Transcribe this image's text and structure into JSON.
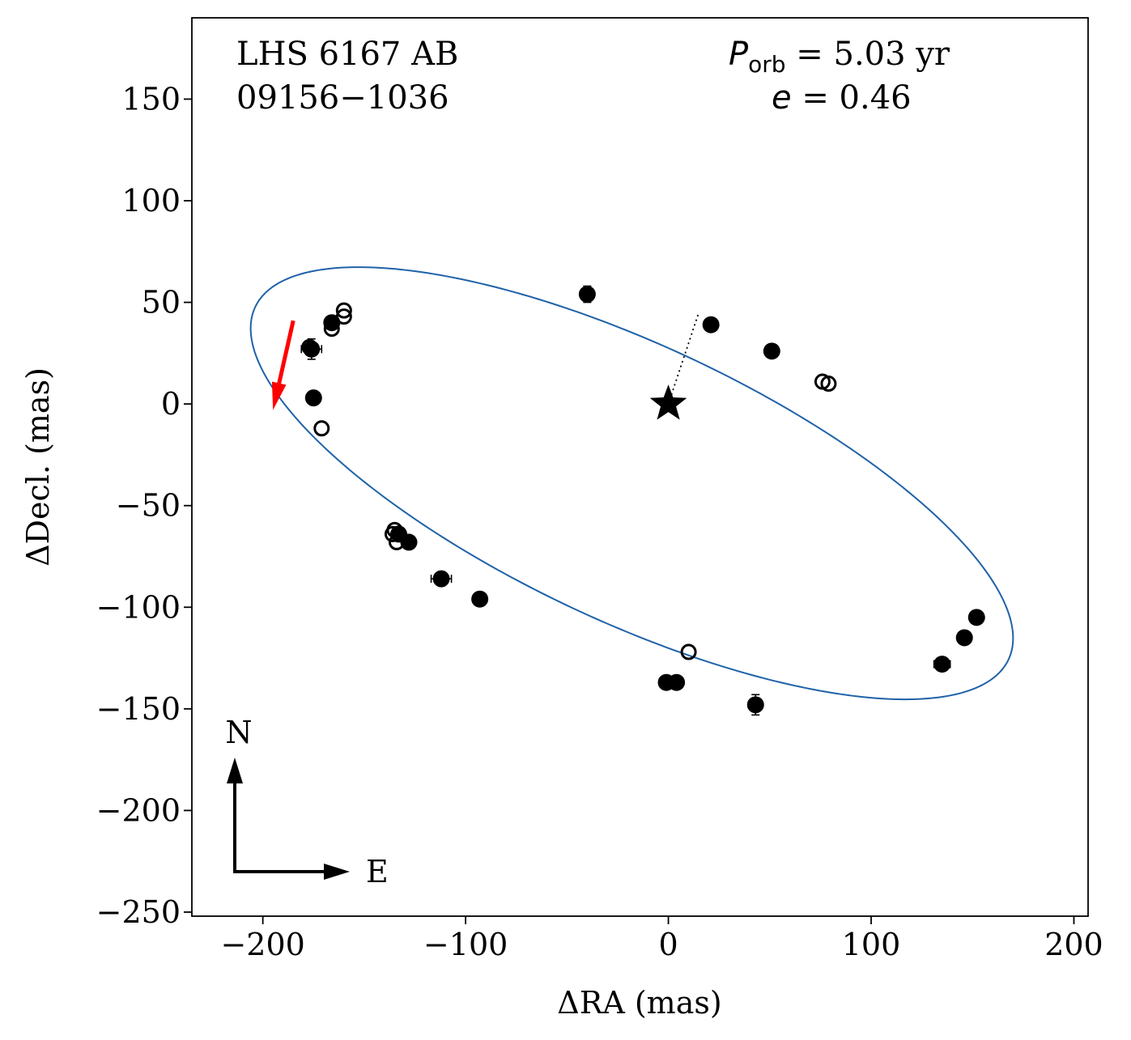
{
  "chart_data": {
    "type": "scatter",
    "title": "",
    "xlabel": "ΔRA  (mas)",
    "ylabel": "ΔDecl.  (mas)",
    "xlim": [
      -235,
      207
    ],
    "ylim": [
      -252,
      190
    ],
    "x_ticks": [
      -200,
      -100,
      0,
      100,
      200
    ],
    "y_ticks": [
      -250,
      -200,
      -150,
      -100,
      -50,
      0,
      50,
      100,
      150
    ],
    "x_tick_labels": [
      "−200",
      "−100",
      "0",
      "100",
      "200"
    ],
    "y_tick_labels": [
      "−250",
      "−200",
      "−150",
      "−100",
      "−50",
      "0",
      "50",
      "100",
      "150"
    ],
    "grid": false,
    "colors": {
      "orbit": "#1f62a8",
      "points": "#000000",
      "motion_arrow": "#ff0000"
    },
    "annotations": {
      "name_line1": "LHS 6167 AB",
      "name_line2": "09156−1036",
      "period_symbol": "P",
      "period_sub": "orb",
      "period_value": " =  5.03 yr",
      "ecc_symbol": "e",
      "ecc_value": " = 0.46",
      "north_label": "N",
      "east_label": "E"
    },
    "orbit": {
      "center": [
        -18,
        -39
      ],
      "semi_major": 205,
      "semi_minor": 68,
      "angle_deg": -25,
      "periastron": [
        15,
        45
      ]
    },
    "primary_star": {
      "x": 0,
      "y": 0,
      "marker": "star"
    },
    "motion_arrow": {
      "from": [
        -185,
        41
      ],
      "to": [
        -195,
        -3
      ]
    },
    "series": [
      {
        "name": "filled",
        "marker": "filled-circle",
        "points": [
          {
            "x": -40,
            "y": 54,
            "yerr": 4
          },
          {
            "x": 21,
            "y": 39
          },
          {
            "x": 51,
            "y": 26
          },
          {
            "x": -166,
            "y": 40
          },
          {
            "x": -176,
            "y": 27,
            "xerr": 5,
            "yerr": 5
          },
          {
            "x": -175,
            "y": 3
          },
          {
            "x": -133,
            "y": -64
          },
          {
            "x": -128,
            "y": -68
          },
          {
            "x": -112,
            "y": -86,
            "xerr": 5
          },
          {
            "x": -93,
            "y": -96
          },
          {
            "x": -1,
            "y": -137
          },
          {
            "x": 4,
            "y": -137
          },
          {
            "x": 43,
            "y": -148,
            "yerr": 5
          },
          {
            "x": 135,
            "y": -128,
            "xerr": 4
          },
          {
            "x": 146,
            "y": -115
          },
          {
            "x": 152,
            "y": -105
          }
        ]
      },
      {
        "name": "open",
        "marker": "open-circle",
        "points": [
          {
            "x": -160,
            "y": 46
          },
          {
            "x": -160,
            "y": 43
          },
          {
            "x": -166,
            "y": 37
          },
          {
            "x": -177,
            "y": 28
          },
          {
            "x": -171,
            "y": -12
          },
          {
            "x": -135,
            "y": -62
          },
          {
            "x": -136,
            "y": -64
          },
          {
            "x": -134,
            "y": -68
          },
          {
            "x": 76,
            "y": 11
          },
          {
            "x": 79,
            "y": 10
          },
          {
            "x": 10,
            "y": -122
          }
        ]
      }
    ]
  }
}
